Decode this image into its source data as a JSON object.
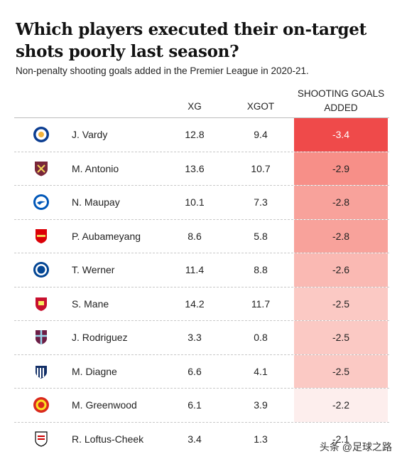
{
  "title": "Which players executed their on-target shots poorly last season?",
  "subtitle": "Non-penalty shooting goals added in the Premier League in 2020-21.",
  "headers": {
    "xg": "XG",
    "xgot": "XGOT",
    "sga": "SHOOTING GOALS ADDED"
  },
  "watermark": "头条 @足球之路",
  "chart_data": {
    "type": "table",
    "columns": [
      "XG",
      "XGOT",
      "SHOOTING GOALS ADDED"
    ],
    "rows": [
      {
        "player": "J. Vardy",
        "club_logo": "leicester-crest-icon",
        "xg": "12.8",
        "xgot": "9.4",
        "sga": "-3.4"
      },
      {
        "player": "M. Antonio",
        "club_logo": "west-ham-crest-icon",
        "xg": "13.6",
        "xgot": "10.7",
        "sga": "-2.9"
      },
      {
        "player": "N. Maupay",
        "club_logo": "brighton-crest-icon",
        "xg": "10.1",
        "xgot": "7.3",
        "sga": "-2.8"
      },
      {
        "player": "P. Aubameyang",
        "club_logo": "arsenal-crest-icon",
        "xg": "8.6",
        "xgot": "5.8",
        "sga": "-2.8"
      },
      {
        "player": "T. Werner",
        "club_logo": "chelsea-crest-icon",
        "xg": "11.4",
        "xgot": "8.8",
        "sga": "-2.6"
      },
      {
        "player": "S. Mane",
        "club_logo": "liverpool-crest-icon",
        "xg": "14.2",
        "xgot": "11.7",
        "sga": "-2.5"
      },
      {
        "player": "J. Rodriguez",
        "club_logo": "burnley-crest-icon",
        "xg": "3.3",
        "xgot": "0.8",
        "sga": "-2.5"
      },
      {
        "player": "M. Diagne",
        "club_logo": "west-brom-crest-icon",
        "xg": "6.6",
        "xgot": "4.1",
        "sga": "-2.5"
      },
      {
        "player": "M. Greenwood",
        "club_logo": "man-utd-crest-icon",
        "xg": "6.1",
        "xgot": "3.9",
        "sga": "-2.2"
      },
      {
        "player": "R. Loftus-Cheek",
        "club_logo": "fulham-crest-icon",
        "xg": "3.4",
        "xgot": "1.3",
        "sga": "-2.1"
      }
    ],
    "cell_colors": [
      "#ef4a4a",
      "#f78f88",
      "#f8a29b",
      "#f8a29b",
      "#fab9b3",
      "#fbc9c4",
      "#fbc9c4",
      "#fbc9c4",
      "#fdeeed",
      "#ffffff"
    ],
    "sga_color_for_-3.4_text": "#ffffff"
  }
}
